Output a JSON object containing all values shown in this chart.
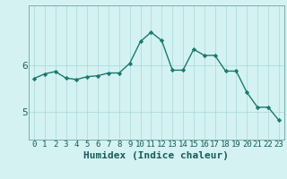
{
  "x": [
    0,
    1,
    2,
    3,
    4,
    5,
    6,
    7,
    8,
    9,
    10,
    11,
    12,
    13,
    14,
    15,
    16,
    17,
    18,
    19,
    20,
    21,
    22,
    23
  ],
  "y": [
    5.72,
    5.82,
    5.87,
    5.73,
    5.7,
    5.76,
    5.78,
    5.84,
    5.84,
    6.05,
    6.52,
    6.72,
    6.54,
    5.9,
    5.9,
    6.35,
    6.22,
    6.22,
    5.88,
    5.88,
    5.42,
    5.1,
    5.1,
    4.82
  ],
  "xlabel": "Humidex (Indice chaleur)",
  "yticks": [
    5,
    6
  ],
  "ylim": [
    4.4,
    7.3
  ],
  "xlim": [
    -0.5,
    23.5
  ],
  "line_color": "#1a7a6e",
  "marker_color": "#1a7a6e",
  "bg_color": "#d4f2f2",
  "grid_color": "#a8d8d8",
  "axis_color": "#7aadad",
  "xlabel_fontsize": 8,
  "tick_fontsize": 6.5,
  "ytick_fontsize": 7.5
}
